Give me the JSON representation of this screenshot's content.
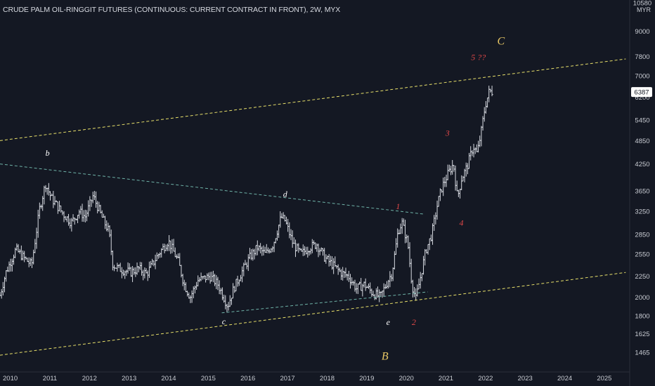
{
  "header": {
    "title": "CRUDE PALM OIL-RINGGIT FUTURES (CONTINUOUS: CURRENT CONTRACT IN FRONT), 2W, MYX"
  },
  "currency_label": "MYR",
  "price_badge": "6387",
  "colors": {
    "background": "#141823",
    "bars": "#d8dbe2",
    "channel": "#e8e06a",
    "triangle_line": "#6fb3a8",
    "white_label": "#ffffff",
    "red_label": "#e04848",
    "gold_label": "#e8c765"
  },
  "chart_data": {
    "type": "ohlc",
    "scale": "log",
    "title": "CRUDE PALM OIL-RINGGIT FUTURES (CONTINUOUS: CURRENT CONTRACT IN FRONT), 2W, MYX",
    "x_range": [
      2009.9,
      2025.8
    ],
    "y_range": [
      1320,
      10580
    ],
    "y_ticks": [
      {
        "value": 10580,
        "label": "10580"
      },
      {
        "value": 9000,
        "label": "9000"
      },
      {
        "value": 7800,
        "label": "7800"
      },
      {
        "value": 7000,
        "label": "7000"
      },
      {
        "value": 6200,
        "label": "6200"
      },
      {
        "value": 5450,
        "label": "5450"
      },
      {
        "value": 4850,
        "label": "4850"
      },
      {
        "value": 4250,
        "label": "4250"
      },
      {
        "value": 3650,
        "label": "3650"
      },
      {
        "value": 3250,
        "label": "3250"
      },
      {
        "value": 2850,
        "label": "2850"
      },
      {
        "value": 2550,
        "label": "2550"
      },
      {
        "value": 2250,
        "label": "2250"
      },
      {
        "value": 2000,
        "label": "2000"
      },
      {
        "value": 1800,
        "label": "1800"
      },
      {
        "value": 1625,
        "label": "1625"
      },
      {
        "value": 1465,
        "label": "1465"
      }
    ],
    "x_ticks": [
      {
        "value": 2010,
        "label": "2010"
      },
      {
        "value": 2011,
        "label": "2011"
      },
      {
        "value": 2012,
        "label": "2012"
      },
      {
        "value": 2013,
        "label": "2013"
      },
      {
        "value": 2014,
        "label": "2014"
      },
      {
        "value": 2015,
        "label": "2015"
      },
      {
        "value": 2016,
        "label": "2016"
      },
      {
        "value": 2017,
        "label": "2017"
      },
      {
        "value": 2018,
        "label": "2018"
      },
      {
        "value": 2019,
        "label": "2019"
      },
      {
        "value": 2020,
        "label": "2020"
      },
      {
        "value": 2021,
        "label": "2021"
      },
      {
        "value": 2022,
        "label": "2022"
      },
      {
        "value": 2023,
        "label": "2023"
      },
      {
        "value": 2024,
        "label": "2024"
      },
      {
        "value": 2025,
        "label": "2025"
      }
    ],
    "last_price": 6387,
    "price_path": [
      [
        2009.9,
        2020
      ],
      [
        2010.05,
        2300
      ],
      [
        2010.3,
        2620
      ],
      [
        2010.5,
        2500
      ],
      [
        2010.7,
        2400
      ],
      [
        2010.9,
        3300
      ],
      [
        2011.05,
        3800
      ],
      [
        2011.2,
        3500
      ],
      [
        2011.5,
        3200
      ],
      [
        2011.7,
        3050
      ],
      [
        2011.9,
        3250
      ],
      [
        2012.05,
        3150
      ],
      [
        2012.25,
        3550
      ],
      [
        2012.5,
        3100
      ],
      [
        2012.65,
        2900
      ],
      [
        2012.75,
        2400
      ],
      [
        2012.9,
        2350
      ],
      [
        2013.2,
        2300
      ],
      [
        2013.4,
        2350
      ],
      [
        2013.6,
        2280
      ],
      [
        2013.9,
        2550
      ],
      [
        2014.15,
        2750
      ],
      [
        2014.4,
        2450
      ],
      [
        2014.55,
        2150
      ],
      [
        2014.7,
        2000
      ],
      [
        2014.9,
        2200
      ],
      [
        2015.2,
        2250
      ],
      [
        2015.4,
        2150
      ],
      [
        2015.55,
        2000
      ],
      [
        2015.65,
        1900
      ],
      [
        2015.8,
        2100
      ],
      [
        2016.0,
        2300
      ],
      [
        2016.2,
        2500
      ],
      [
        2016.4,
        2650
      ],
      [
        2016.6,
        2550
      ],
      [
        2016.8,
        2700
      ],
      [
        2017.0,
        3150
      ],
      [
        2017.1,
        3080
      ],
      [
        2017.3,
        2700
      ],
      [
        2017.5,
        2550
      ],
      [
        2017.7,
        2650
      ],
      [
        2017.9,
        2700
      ],
      [
        2018.1,
        2500
      ],
      [
        2018.3,
        2400
      ],
      [
        2018.5,
        2300
      ],
      [
        2018.7,
        2250
      ],
      [
        2018.9,
        2100
      ],
      [
        2019.1,
        2150
      ],
      [
        2019.3,
        2050
      ],
      [
        2019.5,
        2000
      ],
      [
        2019.65,
        2150
      ],
      [
        2019.8,
        2300
      ],
      [
        2019.95,
        2900
      ],
      [
        2020.05,
        3050
      ],
      [
        2020.2,
        2700
      ],
      [
        2020.3,
        2150
      ],
      [
        2020.4,
        1980
      ],
      [
        2020.5,
        2200
      ],
      [
        2020.65,
        2600
      ],
      [
        2020.8,
        2850
      ],
      [
        2020.95,
        3400
      ],
      [
        2021.05,
        3700
      ],
      [
        2021.2,
        4000
      ],
      [
        2021.35,
        4250
      ],
      [
        2021.45,
        3500
      ],
      [
        2021.55,
        3900
      ],
      [
        2021.7,
        4200
      ],
      [
        2021.85,
        4700
      ],
      [
        2021.95,
        4500
      ],
      [
        2022.05,
        5100
      ],
      [
        2022.15,
        5900
      ],
      [
        2022.25,
        6400
      ],
      [
        2022.35,
        6400
      ]
    ],
    "annotations": [
      {
        "label": "b",
        "x": 2011.1,
        "y": 4450,
        "color": "white"
      },
      {
        "label": "c",
        "x": 2015.55,
        "y": 1715,
        "color": "white"
      },
      {
        "label": "d",
        "x": 2017.1,
        "y": 3530,
        "color": "white"
      },
      {
        "label": "e",
        "x": 2019.7,
        "y": 1710,
        "color": "white"
      },
      {
        "label": "1",
        "x": 2019.95,
        "y": 3290,
        "color": "red"
      },
      {
        "label": "2",
        "x": 2020.35,
        "y": 1710,
        "color": "red"
      },
      {
        "label": "3",
        "x": 2021.2,
        "y": 4980,
        "color": "red"
      },
      {
        "label": "4",
        "x": 2021.55,
        "y": 3000,
        "color": "red"
      },
      {
        "label": "5 ??",
        "x": 2021.98,
        "y": 7650,
        "color": "red"
      },
      {
        "label": "C",
        "x": 2022.55,
        "y": 8350,
        "color": "gold",
        "size": 16
      },
      {
        "label": "B",
        "x": 2019.62,
        "y": 1405,
        "color": "gold",
        "size": 16
      }
    ],
    "lines": [
      {
        "kind": "channel-upper",
        "from": [
          2009.9,
          4850
        ],
        "to": [
          2025.7,
          7700
        ],
        "style": "dashed",
        "color": "channel"
      },
      {
        "kind": "channel-lower",
        "from": [
          2009.9,
          1440
        ],
        "to": [
          2025.7,
          2300
        ],
        "style": "dashed",
        "color": "channel"
      },
      {
        "kind": "triangle-upper",
        "from": [
          2009.9,
          4250
        ],
        "to": [
          2020.6,
          3200
        ],
        "style": "dashed",
        "color": "triangle_line"
      },
      {
        "kind": "triangle-lower",
        "from": [
          2015.5,
          1830
        ],
        "to": [
          2020.7,
          2060
        ],
        "style": "dashed",
        "color": "triangle_line"
      }
    ],
    "legend": "none",
    "grid": false
  }
}
